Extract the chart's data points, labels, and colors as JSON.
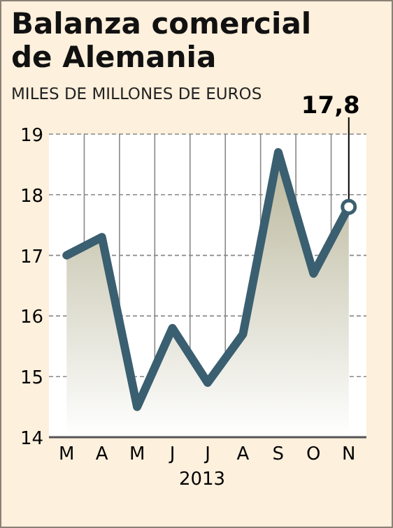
{
  "chart_data": {
    "type": "area",
    "title": "Balanza comercial de Alemania",
    "subtitle": "MILES DE MILLONES DE EUROS",
    "xlabel": "2013",
    "categories": [
      "M",
      "A",
      "M",
      "J",
      "J",
      "A",
      "S",
      "O",
      "N"
    ],
    "series": [
      {
        "color": "#3a5f70",
        "values": [
          17.0,
          17.3,
          14.5,
          15.8,
          14.9,
          15.7,
          18.7,
          16.7,
          17.8
        ],
        "value_labels": [
          null,
          null,
          null,
          null,
          null,
          null,
          null,
          null,
          "17,8"
        ]
      }
    ],
    "ylim": [
      14,
      19
    ],
    "yticks": [
      14,
      15,
      16,
      17,
      18,
      19
    ],
    "grid": true,
    "marker": "none",
    "line_style": "solid"
  }
}
